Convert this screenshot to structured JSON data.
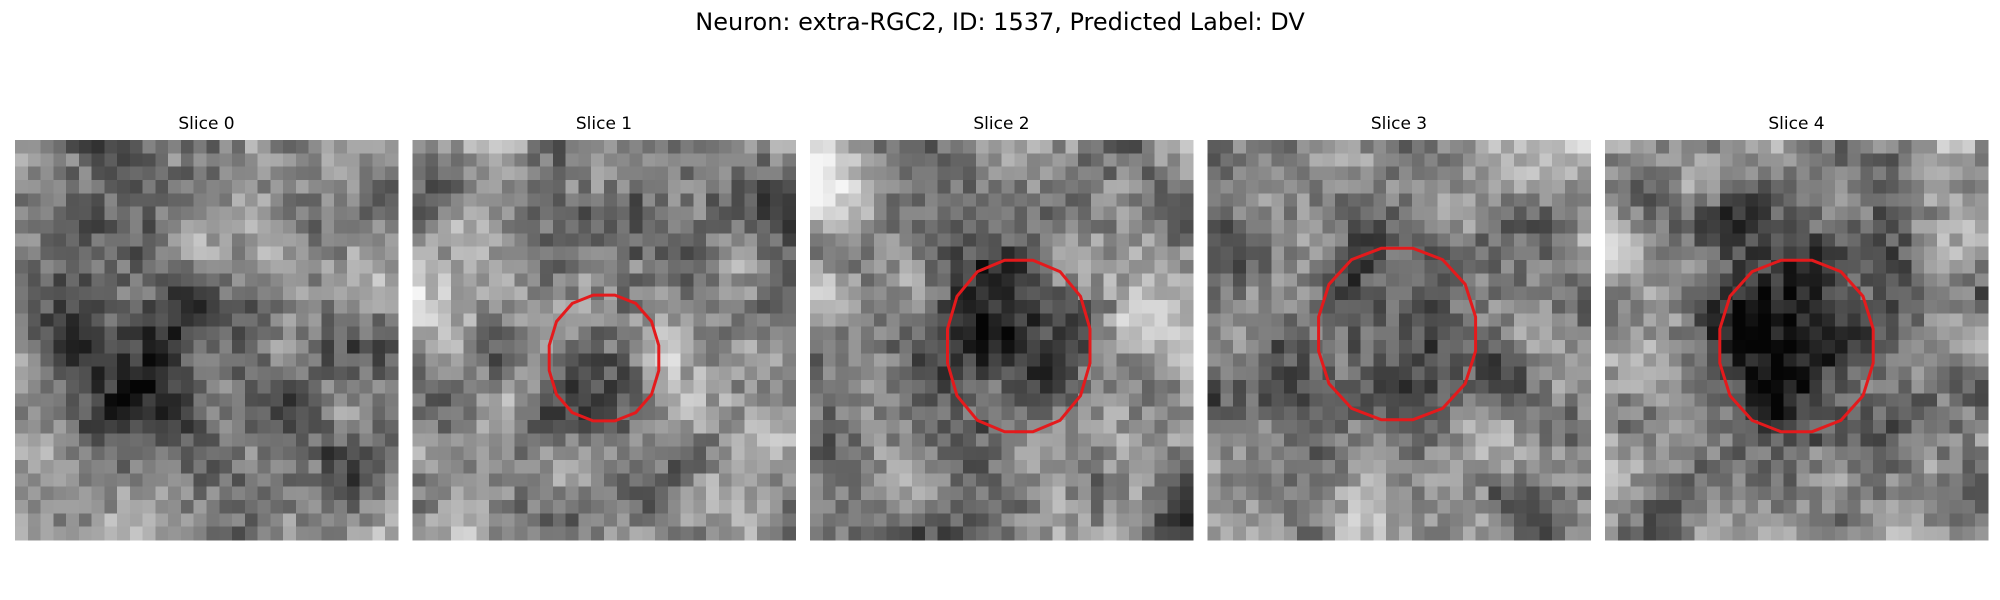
{
  "header": {
    "title": "Neuron: extra-RGC2, ID: 1537, Predicted Label: DV"
  },
  "panels": [
    {
      "title": "Slice 0"
    },
    {
      "title": "Slice 1"
    },
    {
      "title": "Slice 2"
    },
    {
      "title": "Slice 3"
    },
    {
      "title": "Slice 4"
    }
  ]
}
